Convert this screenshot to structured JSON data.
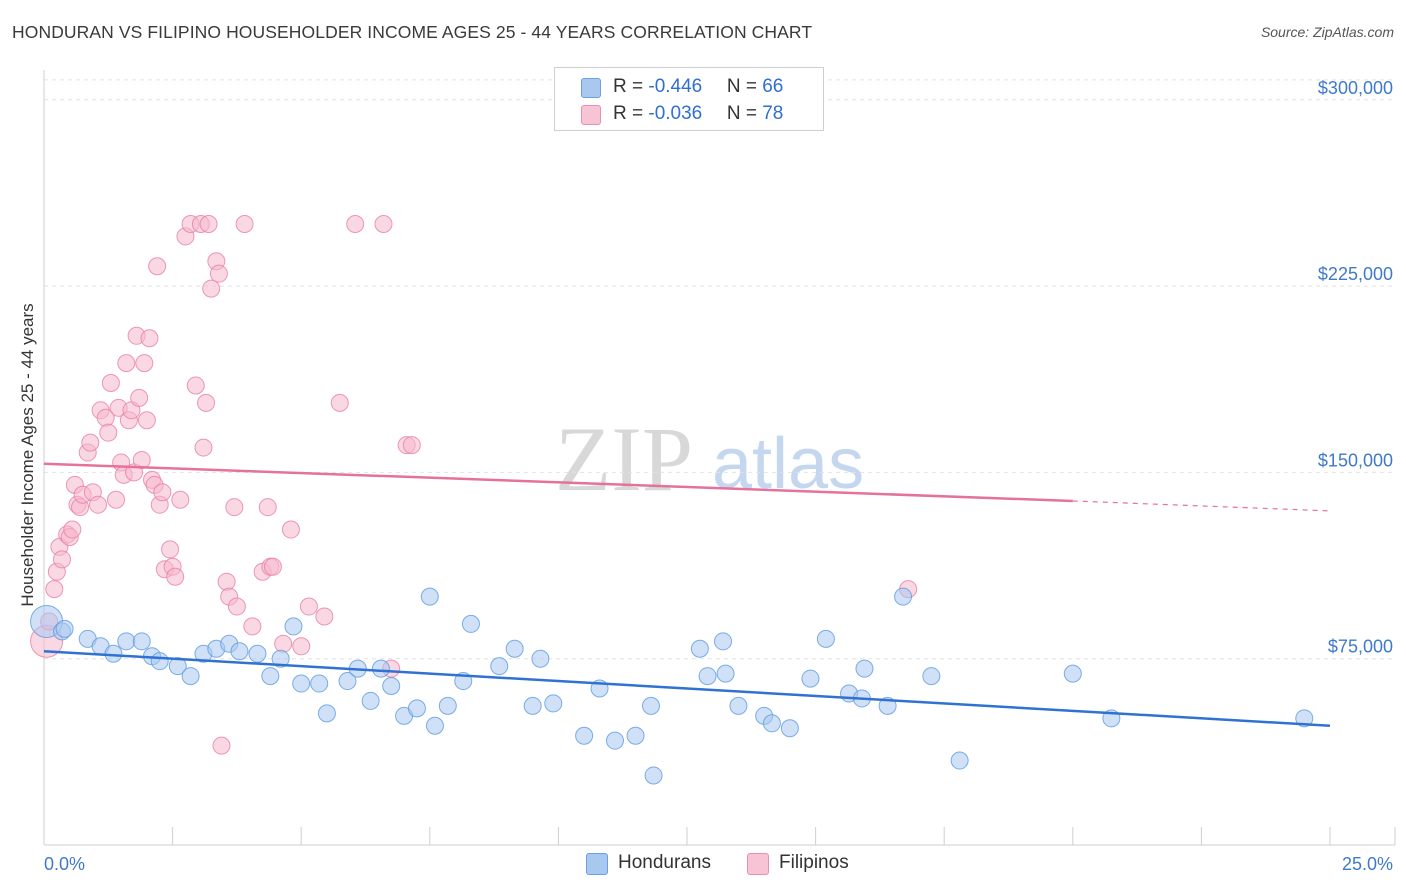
{
  "title": "HONDURAN VS FILIPINO HOUSEHOLDER INCOME AGES 25 - 44 YEARS CORRELATION CHART",
  "source": "Source: ZipAtlas.com",
  "watermark": {
    "zip": "ZIP",
    "atlas": "atlas"
  },
  "legend": {
    "rows": [
      {
        "r_label": "R = ",
        "r_value": "-0.446",
        "n_label": "N = ",
        "n_value": "66",
        "color": "#a9c8f0"
      },
      {
        "r_label": "R = ",
        "r_value": "-0.036",
        "n_label": "N = ",
        "n_value": "78",
        "color": "#f6b8cc"
      }
    ]
  },
  "bottom_legend": [
    {
      "label": "Hondurans",
      "color": "#a9c8f0"
    },
    {
      "label": "Filipinos",
      "color": "#f6b8cc"
    }
  ],
  "chart_data": {
    "type": "scatter",
    "title": "HONDURAN VS FILIPINO HOUSEHOLDER INCOME AGES 25 - 44 YEARS CORRELATION CHART",
    "xlabel": "",
    "ylabel": "Householder Income Ages 25 - 44 years",
    "xlim": [
      0,
      25
    ],
    "ylim": [
      0,
      312000
    ],
    "x_tick_labels": {
      "min": "0.0%",
      "max": "25.0%"
    },
    "y_ticks": [
      75000,
      150000,
      225000,
      300000
    ],
    "y_tick_labels": [
      "$75,000",
      "$150,000",
      "$225,000",
      "$300,000"
    ],
    "grid": "horizontal dashed",
    "legend_position": "top-center",
    "series": [
      {
        "name": "Hondurans",
        "color": "#5b9be0",
        "fill": "#a9c8f0",
        "trend": {
          "x": [
            0,
            25
          ],
          "y": [
            78000,
            48000
          ],
          "dashed_extension": false
        },
        "points": [
          [
            0.05,
            90000
          ],
          [
            0.35,
            86000
          ],
          [
            0.85,
            83000
          ],
          [
            1.1,
            80000
          ],
          [
            1.35,
            77000
          ],
          [
            1.6,
            82000
          ],
          [
            1.9,
            82000
          ],
          [
            2.1,
            76000
          ],
          [
            2.25,
            74000
          ],
          [
            2.6,
            72000
          ],
          [
            2.85,
            68000
          ],
          [
            3.1,
            77000
          ],
          [
            3.35,
            79000
          ],
          [
            3.6,
            81000
          ],
          [
            3.8,
            78000
          ],
          [
            4.15,
            77000
          ],
          [
            4.4,
            68000
          ],
          [
            4.6,
            75000
          ],
          [
            4.85,
            88000
          ],
          [
            5.0,
            65000
          ],
          [
            5.35,
            65000
          ],
          [
            5.5,
            53000
          ],
          [
            5.9,
            66000
          ],
          [
            6.1,
            71000
          ],
          [
            6.35,
            58000
          ],
          [
            6.55,
            71000
          ],
          [
            6.75,
            64000
          ],
          [
            7.0,
            52000
          ],
          [
            7.25,
            55000
          ],
          [
            7.5,
            100000
          ],
          [
            7.6,
            48000
          ],
          [
            7.85,
            56000
          ],
          [
            8.15,
            66000
          ],
          [
            8.3,
            89000
          ],
          [
            8.85,
            72000
          ],
          [
            9.15,
            79000
          ],
          [
            9.5,
            56000
          ],
          [
            9.65,
            75000
          ],
          [
            9.9,
            57000
          ],
          [
            10.5,
            44000
          ],
          [
            10.8,
            63000
          ],
          [
            11.1,
            42000
          ],
          [
            11.5,
            44000
          ],
          [
            11.8,
            56000
          ],
          [
            11.85,
            28000
          ],
          [
            12.75,
            79000
          ],
          [
            12.9,
            68000
          ],
          [
            13.2,
            82000
          ],
          [
            13.25,
            69000
          ],
          [
            13.5,
            56000
          ],
          [
            14.0,
            52000
          ],
          [
            14.15,
            49000
          ],
          [
            14.5,
            47000
          ],
          [
            14.9,
            67000
          ],
          [
            15.2,
            83000
          ],
          [
            15.65,
            61000
          ],
          [
            15.9,
            59000
          ],
          [
            15.95,
            71000
          ],
          [
            16.4,
            56000
          ],
          [
            16.7,
            100000
          ],
          [
            17.25,
            68000
          ],
          [
            17.8,
            34000
          ],
          [
            20.0,
            69000
          ],
          [
            20.75,
            51000
          ],
          [
            24.5,
            51000
          ],
          [
            0.4,
            87000
          ]
        ]
      },
      {
        "name": "Filipinos",
        "color": "#e77fa3",
        "fill": "#f6b8cc",
        "trend": {
          "x": [
            0,
            20
          ],
          "y": [
            153500,
            138500
          ],
          "dashed_extension": {
            "x": [
              20,
              25
            ],
            "y": [
              138500,
              134500
            ]
          }
        },
        "points": [
          [
            0.05,
            82000
          ],
          [
            0.1,
            90000
          ],
          [
            0.2,
            103000
          ],
          [
            0.25,
            110000
          ],
          [
            0.3,
            120000
          ],
          [
            0.35,
            115000
          ],
          [
            0.45,
            125000
          ],
          [
            0.5,
            124000
          ],
          [
            0.55,
            127000
          ],
          [
            0.6,
            145000
          ],
          [
            0.65,
            137000
          ],
          [
            0.7,
            136000
          ],
          [
            0.75,
            141000
          ],
          [
            0.85,
            158000
          ],
          [
            0.9,
            162000
          ],
          [
            0.95,
            142000
          ],
          [
            1.05,
            137000
          ],
          [
            1.1,
            175000
          ],
          [
            1.2,
            172000
          ],
          [
            1.25,
            166000
          ],
          [
            1.3,
            186000
          ],
          [
            1.4,
            139000
          ],
          [
            1.45,
            176000
          ],
          [
            1.5,
            154000
          ],
          [
            1.55,
            149000
          ],
          [
            1.6,
            194000
          ],
          [
            1.65,
            171000
          ],
          [
            1.7,
            175000
          ],
          [
            1.75,
            150000
          ],
          [
            1.8,
            205000
          ],
          [
            1.85,
            180000
          ],
          [
            1.9,
            155000
          ],
          [
            1.95,
            194000
          ],
          [
            2.0,
            171000
          ],
          [
            2.05,
            204000
          ],
          [
            2.1,
            147000
          ],
          [
            2.15,
            145000
          ],
          [
            2.2,
            233000
          ],
          [
            2.25,
            137000
          ],
          [
            2.3,
            142000
          ],
          [
            2.35,
            111000
          ],
          [
            2.45,
            119000
          ],
          [
            2.5,
            112000
          ],
          [
            2.55,
            108000
          ],
          [
            2.65,
            139000
          ],
          [
            2.75,
            245000
          ],
          [
            2.85,
            250000
          ],
          [
            2.95,
            185000
          ],
          [
            3.05,
            250000
          ],
          [
            3.1,
            160000
          ],
          [
            3.15,
            178000
          ],
          [
            3.2,
            250000
          ],
          [
            3.25,
            224000
          ],
          [
            3.35,
            235000
          ],
          [
            3.4,
            230000
          ],
          [
            3.45,
            40000
          ],
          [
            3.55,
            106000
          ],
          [
            3.6,
            100000
          ],
          [
            3.7,
            136000
          ],
          [
            3.75,
            96000
          ],
          [
            3.9,
            250000
          ],
          [
            4.05,
            88000
          ],
          [
            4.25,
            110000
          ],
          [
            4.35,
            136000
          ],
          [
            4.4,
            112000
          ],
          [
            4.45,
            112000
          ],
          [
            4.65,
            81000
          ],
          [
            4.8,
            127000
          ],
          [
            5.0,
            80000
          ],
          [
            5.15,
            96000
          ],
          [
            5.45,
            92000
          ],
          [
            5.75,
            178000
          ],
          [
            6.05,
            250000
          ],
          [
            6.6,
            250000
          ],
          [
            6.75,
            71000
          ],
          [
            7.05,
            161000
          ],
          [
            7.15,
            161000
          ],
          [
            16.8,
            103000
          ]
        ]
      }
    ]
  }
}
